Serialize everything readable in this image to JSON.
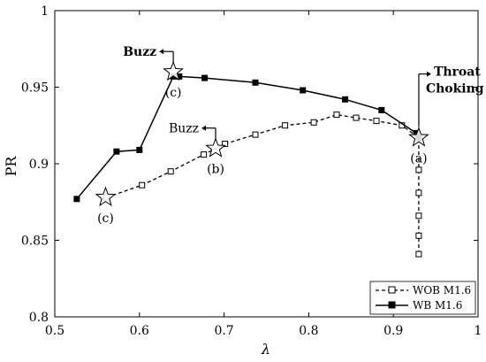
{
  "chart_data": {
    "type": "line",
    "xlabel": "λ",
    "ylabel": "PR",
    "xlim": [
      0.5,
      1.0
    ],
    "ylim": [
      0.8,
      1.0
    ],
    "xticks": [
      "0.5",
      "0.6",
      "0.7",
      "0.8",
      "0.9",
      "1"
    ],
    "yticks": [
      "0.8",
      "0.85",
      "0.9",
      "0.95",
      "1"
    ],
    "legend_position": "bottom-right",
    "series": [
      {
        "name": "WOB M1.6",
        "style": "dashed",
        "marker": "open-square",
        "color": "#000000",
        "x": [
          0.93,
          0.93,
          0.93,
          0.93,
          0.93,
          0.93,
          0.91,
          0.88,
          0.856,
          0.833,
          0.806,
          0.772,
          0.737,
          0.701,
          0.676,
          0.637,
          0.603,
          0.561
        ],
        "y": [
          0.841,
          0.853,
          0.866,
          0.881,
          0.896,
          0.917,
          0.925,
          0.928,
          0.93,
          0.932,
          0.927,
          0.925,
          0.919,
          0.913,
          0.906,
          0.895,
          0.886,
          0.878
        ]
      },
      {
        "name": "WB M1.6",
        "style": "solid",
        "marker": "filled-square",
        "color": "#000000",
        "x": [
          0.526,
          0.573,
          0.6,
          0.64,
          0.647,
          0.677,
          0.737,
          0.793,
          0.843,
          0.886,
          0.927,
          0.93
        ],
        "y": [
          0.877,
          0.908,
          0.909,
          0.957,
          0.957,
          0.956,
          0.953,
          0.948,
          0.942,
          0.935,
          0.92,
          0.917
        ]
      }
    ],
    "annotations": [
      {
        "id": "buzz-top",
        "text": "Buzz",
        "bold": true,
        "x": 0.64,
        "y": 0.96,
        "arrow": "left",
        "star": true,
        "label": "(c)"
      },
      {
        "id": "buzz-mid",
        "text": "Buzz",
        "bold": false,
        "x": 0.69,
        "y": 0.91,
        "arrow": "left",
        "star": true,
        "label": "(b)"
      },
      {
        "id": "choking",
        "lines": [
          "Throat",
          "Choking"
        ],
        "bold": true,
        "x": 0.93,
        "y": 0.917,
        "arrow": "right",
        "star": true,
        "label": "(a)"
      },
      {
        "id": "c-low",
        "star": true,
        "x": 0.56,
        "y": 0.878,
        "label": "(c)"
      }
    ]
  }
}
